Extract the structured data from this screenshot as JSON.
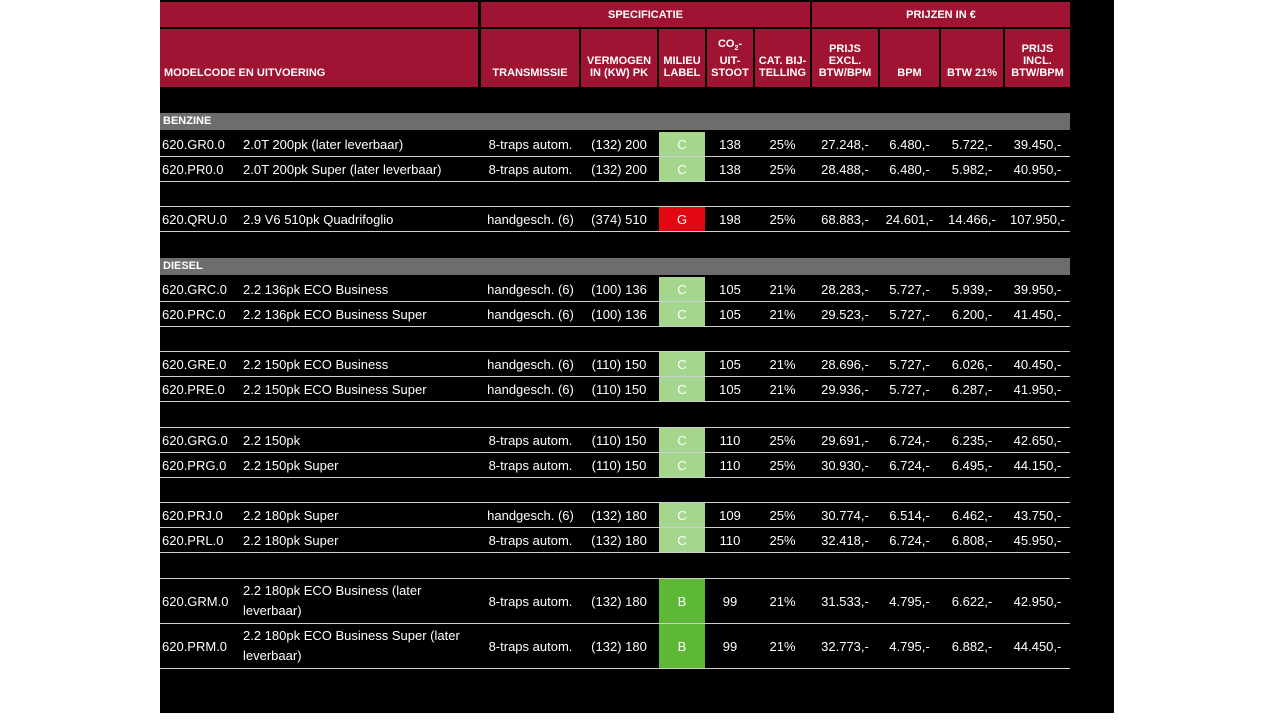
{
  "header": {
    "group_spec": "SPECIFICATIE",
    "group_prices": "PRIJZEN IN €",
    "model": "MODELCODE EN UITVOERING",
    "transmissie": "TRANSMISSIE",
    "vermogen_1": "VERMOGEN",
    "vermogen_2": "IN (KW) PK",
    "milieu_1": "MILIEU",
    "milieu_2": "LABEL",
    "co2_a": "CO",
    "co2_sub": "2",
    "co2_dash": "-",
    "co2_2": "UIT-",
    "co2_3": "STOOT",
    "cat_1": "CAT. BIJ-",
    "cat_2": "TELLING",
    "excl_1": "PRIJS",
    "excl_2": "EXCL.",
    "excl_3": "BTW/BPM",
    "bpm": "BPM",
    "btw": "BTW 21%",
    "incl_1": "PRIJS",
    "incl_2": "INCL.",
    "incl_3": "BTW/BPM"
  },
  "colors": {
    "header_bg": "#a01433",
    "section_bg": "#6d6d6d",
    "label_C": "#a5d68e",
    "label_G": "#e30613",
    "label_B": "#5db836"
  },
  "sections": [
    {
      "title": "BENZINE"
    },
    {
      "title": "DIESEL"
    }
  ],
  "rows": [
    {
      "code": "620.GR0.0",
      "desc": "2.0T 200pk (later leverbaar)",
      "trans": "8-traps autom.",
      "power": "(132) 200",
      "label": "C",
      "co2": "138",
      "cat": "25%",
      "excl": "27.248,-",
      "bpm": "6.480,-",
      "btw": "5.722,-",
      "incl": "39.450,-"
    },
    {
      "code": "620.PR0.0",
      "desc": "2.0T 200pk Super (later leverbaar)",
      "trans": "8-traps autom.",
      "power": "(132) 200",
      "label": "C",
      "co2": "138",
      "cat": "25%",
      "excl": "28.488,-",
      "bpm": "6.480,-",
      "btw": "5.982,-",
      "incl": "40.950,-"
    },
    {
      "code": "620.QRU.0",
      "desc": "2.9 V6 510pk Quadrifoglio",
      "trans": "handgesch. (6)",
      "power": "(374) 510",
      "label": "G",
      "co2": "198",
      "cat": "25%",
      "excl": "68.883,-",
      "bpm": "24.601,-",
      "btw": "14.466,-",
      "incl": "107.950,-"
    },
    {
      "code": "620.GRC.0",
      "desc": "2.2 136pk ECO Business",
      "trans": "handgesch. (6)",
      "power": "(100) 136",
      "label": "C",
      "co2": "105",
      "cat": "21%",
      "excl": "28.283,-",
      "bpm": "5.727,-",
      "btw": "5.939,-",
      "incl": "39.950,-"
    },
    {
      "code": "620.PRC.0",
      "desc": "2.2 136pk ECO Business Super",
      "trans": "handgesch. (6)",
      "power": "(100) 136",
      "label": "C",
      "co2": "105",
      "cat": "21%",
      "excl": "29.523,-",
      "bpm": "5.727,-",
      "btw": "6.200,-",
      "incl": "41.450,-"
    },
    {
      "code": "620.GRE.0",
      "desc": "2.2 150pk ECO Business",
      "trans": "handgesch. (6)",
      "power": "(110) 150",
      "label": "C",
      "co2": "105",
      "cat": "21%",
      "excl": "28.696,-",
      "bpm": "5.727,-",
      "btw": "6.026,-",
      "incl": "40.450,-"
    },
    {
      "code": "620.PRE.0",
      "desc": "2.2 150pk ECO Business Super",
      "trans": "handgesch. (6)",
      "power": "(110) 150",
      "label": "C",
      "co2": "105",
      "cat": "21%",
      "excl": "29.936,-",
      "bpm": "5.727,-",
      "btw": "6.287,-",
      "incl": "41.950,-"
    },
    {
      "code": "620.GRG.0",
      "desc": "2.2 150pk",
      "trans": "8-traps autom.",
      "power": "(110) 150",
      "label": "C",
      "co2": "110",
      "cat": "25%",
      "excl": "29.691,-",
      "bpm": "6.724,-",
      "btw": "6.235,-",
      "incl": "42.650,-"
    },
    {
      "code": "620.PRG.0",
      "desc": "2.2 150pk Super",
      "trans": "8-traps autom.",
      "power": "(110) 150",
      "label": "C",
      "co2": "110",
      "cat": "25%",
      "excl": "30.930,-",
      "bpm": "6.724,-",
      "btw": "6.495,-",
      "incl": "44.150,-"
    },
    {
      "code": "620.PRJ.0",
      "desc": "2.2 180pk Super",
      "trans": "handgesch. (6)",
      "power": "(132) 180",
      "label": "C",
      "co2": "109",
      "cat": "25%",
      "excl": "30.774,-",
      "bpm": "6.514,-",
      "btw": "6.462,-",
      "incl": "43.750,-"
    },
    {
      "code": "620.PRL.0",
      "desc": "2.2 180pk Super",
      "trans": "8-traps autom.",
      "power": "(132) 180",
      "label": "C",
      "co2": "110",
      "cat": "25%",
      "excl": "32.418,-",
      "bpm": "6.724,-",
      "btw": "6.808,-",
      "incl": "45.950,-"
    },
    {
      "code": "620.GRM.0",
      "desc": "2.2 180pk ECO Business (later leverbaar)",
      "trans": "8-traps autom.",
      "power": "(132) 180",
      "label": "B",
      "co2": "99",
      "cat": "21%",
      "excl": "31.533,-",
      "bpm": "4.795,-",
      "btw": "6.622,-",
      "incl": "42.950,-"
    },
    {
      "code": "620.PRM.0",
      "desc": "2.2 180pk ECO Business Super (later leverbaar)",
      "trans": "8-traps autom.",
      "power": "(132) 180",
      "label": "B",
      "co2": "99",
      "cat": "21%",
      "excl": "32.773,-",
      "bpm": "4.795,-",
      "btw": "6.882,-",
      "incl": "44.450,-"
    }
  ]
}
